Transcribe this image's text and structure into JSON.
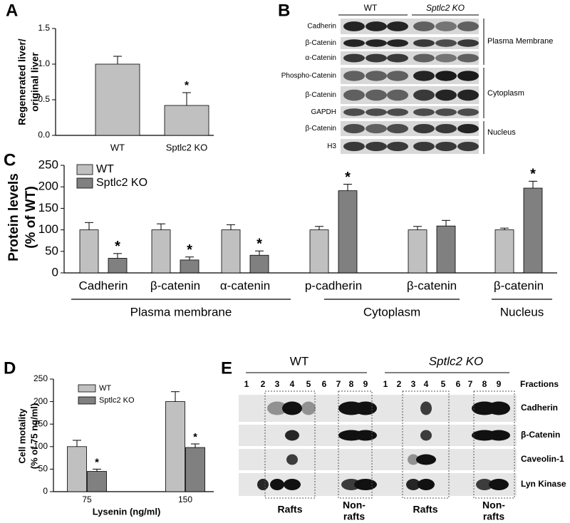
{
  "chart_data": [
    {
      "type": "bar",
      "panel": "A",
      "y_label": [
        "Regenerated liver/",
        "original liver"
      ],
      "categories": [
        "WT",
        "Sptlc2 KO"
      ],
      "values": [
        1.0,
        0.42
      ],
      "errors": [
        0.11,
        0.18
      ],
      "significance": [
        null,
        "*"
      ],
      "color": "#c0c0c0",
      "ylim": [
        0,
        1.5
      ],
      "yticks": [
        {
          "value": 0,
          "label": "0.0"
        },
        0.5,
        {
          "value": 1,
          "label": "1.0"
        },
        1.5
      ]
    },
    {
      "type": "bar",
      "panel": "C",
      "y_label": [
        "Protein levels",
        "(% of WT)"
      ],
      "categories": [
        "Cadherin",
        "β-catenin",
        "α-catenin",
        "p-cadherin",
        "β-catenin",
        "β-catenin"
      ],
      "group_labels": [
        "Plasma membrane",
        "Cytoplasm",
        "Nucleus"
      ],
      "series": [
        {
          "name": "WT",
          "color": "#c0c0c0",
          "values": [
            100,
            100,
            100,
            100,
            100,
            100
          ],
          "errors": [
            17,
            14,
            12,
            8,
            8,
            4
          ],
          "significance": [
            null,
            null,
            null,
            null,
            null,
            null
          ]
        },
        {
          "name": "Sptlc2 KO",
          "color": "#808080",
          "values": [
            34,
            30,
            41,
            191,
            109,
            197
          ],
          "errors": [
            11,
            7,
            10,
            15,
            13,
            16
          ],
          "significance": [
            "*",
            "*",
            "*",
            "*",
            null,
            "*"
          ]
        }
      ],
      "ylim": [
        0,
        250
      ],
      "yticks": [
        0,
        50,
        100,
        150,
        200,
        250
      ]
    },
    {
      "type": "bar",
      "panel": "D",
      "y_label": [
        "Cell motality",
        "(% of 75 ng/ml)"
      ],
      "x_label": "Lysenin (ng/ml)",
      "categories": [
        "75",
        "150"
      ],
      "series": [
        {
          "name": "WT",
          "color": "#c0c0c0",
          "values": [
            100,
            200
          ],
          "errors": [
            14,
            22
          ],
          "significance": [
            null,
            null
          ]
        },
        {
          "name": "Sptlc2 KO",
          "color": "#808080",
          "values": [
            45,
            98
          ],
          "errors": [
            5,
            8
          ],
          "significance": [
            "*",
            "*"
          ]
        }
      ],
      "ylim": [
        0,
        250
      ],
      "yticks": [
        0,
        50,
        100,
        150,
        200,
        250
      ]
    }
  ],
  "blots": [
    {
      "panel": "B",
      "headers": [
        "WT",
        "Sptlc2 KO"
      ],
      "rows": [
        "Cadherin",
        "β-Catenin",
        "α-Catenin",
        "Phospho-Catenin",
        "β-Catenin",
        "GAPDH",
        "β-Catenin",
        "H3"
      ],
      "groups": [
        "Plasma Membrane",
        "Cytoplasm",
        "Nucleus"
      ]
    },
    {
      "panel": "E",
      "headers": [
        "WT",
        "Sptlc2 KO"
      ],
      "fractions": [
        "1",
        "2",
        "3",
        "4",
        "5",
        "6",
        "7",
        "8",
        "9"
      ],
      "fractions_label": "Fractions",
      "rows": [
        "Cadherin",
        "β-Catenin",
        "Caveolin-1",
        "Lyn Kinase"
      ],
      "bottom_labels": [
        "Rafts",
        [
          "Non-",
          "rafts"
        ]
      ]
    }
  ]
}
